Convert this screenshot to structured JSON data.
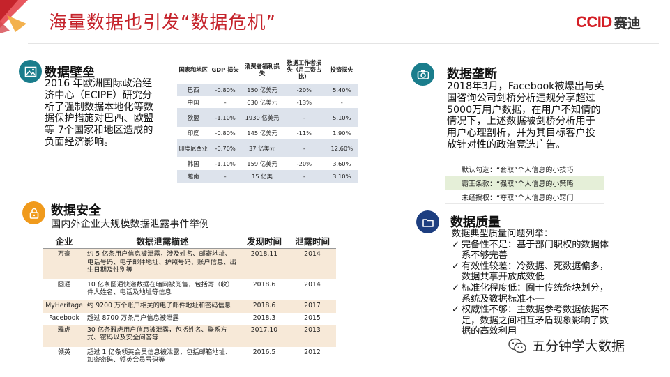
{
  "slide": {
    "title": "海量数据也引发“数据危机”",
    "logo_ccid": "CCID",
    "logo_cn": "赛迪",
    "accent_red": "#c5232b",
    "teal": "#1a7d8c",
    "orange": "#f09a1c",
    "navy": "#1d3e80"
  },
  "wall": {
    "icon": "picture-icon",
    "title": "数据壁垒",
    "lines": [
      "2016 年欧洲国际政治经",
      "济中心（ECIPE）研究分",
      "析了强制数据本地化等数",
      "据保护措施对巴西、欧盟",
      "等 7个国家和地区造成的",
      "负面经济影响。"
    ]
  },
  "impact_table": {
    "headers": [
      "国家和地区",
      "GDP 损失",
      "消费者福利损失",
      "数据工作者损失（月工资占比）",
      "投资损失"
    ],
    "rows": [
      [
        "巴西",
        "-0.80%",
        "150 亿美元",
        "-20%",
        "5.40%"
      ],
      [
        "中国",
        "-",
        "630 亿美元",
        "-13%",
        "-"
      ],
      [
        "欧盟",
        "-1.10%",
        "1930 亿美元",
        "-",
        "5.10%"
      ],
      [
        "印度",
        "-0.80%",
        "145 亿美元",
        "-11%",
        "1.90%"
      ],
      [
        "印度尼西亚",
        "-0.70%",
        "37 亿美元",
        "-",
        "12.60%"
      ],
      [
        "韩国",
        "-1.10%",
        "159 亿美元",
        "-20%",
        "3.60%"
      ],
      [
        "越南",
        "-",
        "15 亿美",
        "-",
        "3.10%"
      ]
    ]
  },
  "monopoly": {
    "icon": "camera-icon",
    "title": "数据垄断",
    "lines": [
      "2018年3月，Facebook被爆出与英",
      "国咨询公司剑桥分析违规分享超过",
      "5000万用户数据，在用户不知情的",
      "情况下，上述数据被剑桥分析用于",
      "用户心理剖析，并为其目标客户投",
      "放针对性的政治竞选广告。"
    ],
    "tactics": [
      "默认勾选：“套取”个人信息的小技巧",
      "霸王条款：“强取”个人信息的小策略",
      "未经授权：“夺取”个人信息的小窍门"
    ]
  },
  "security": {
    "icon": "lock-icon",
    "title": "数据安全",
    "subtitle": "国内外企业大规模数据泄露事件举例",
    "headers": [
      "企业",
      "数据泄露描述",
      "发现时间",
      "泄露时间"
    ],
    "rows": [
      {
        "company": "万豪",
        "desc": "约 5 亿条用户信息被泄露，涉及姓名、邮寄地址、电话号码、电子邮件地址、护照号码、账户信息、出生日期及性别等",
        "found": "2018.11",
        "leaked": "2014"
      },
      {
        "company": "圆通",
        "desc": "10 亿条圆通快递数据在暗网被兜售，包括寄（收）件人姓名、电话及地址等信息",
        "found": "2018.6",
        "leaked": "2014"
      },
      {
        "company": "MyHeritage",
        "desc": "约 9200 万个账户相关的电子邮件地址和密码信息",
        "found": "2018.6",
        "leaked": "2017"
      },
      {
        "company": "Facebook",
        "desc": "超过 8700 万条用户信息被泄露",
        "found": "2018.3",
        "leaked": "2015"
      },
      {
        "company": "雅虎",
        "desc": "30 亿条雅虎用户信息被泄露，包括姓名、联系方式、密码以及安全问答等",
        "found": "2017.10",
        "leaked": "2013"
      },
      {
        "company": "领英",
        "desc": "超过 1 亿条领英会员信息被泄露，包括邮箱地址、加密密码、领英会员号码等",
        "found": "2016.5",
        "leaked": "2012"
      }
    ]
  },
  "quality": {
    "icon": "folder-icon",
    "title": "数据质量",
    "intro": "数据典型质量问题列举：",
    "items": [
      {
        "line1": "完备性不足：基于部门职权的数据体",
        "line2": "系不够完善"
      },
      {
        "line1": "有效性较差：冷数据、死数据偏多，",
        "line2": "数据共享开放成效低"
      },
      {
        "line1": "标准化程度低：囿于传统条块划分，",
        "line2": "系统及数据标准不一"
      },
      {
        "line1": "权威性不够：主数据参考数据依据不",
        "line2": "足，数据之间相互矛盾现象影响了数",
        "line3": "据的高效利用"
      }
    ]
  },
  "watermark": {
    "icon": "wechat-icon",
    "text": "五分钟学大数据"
  }
}
